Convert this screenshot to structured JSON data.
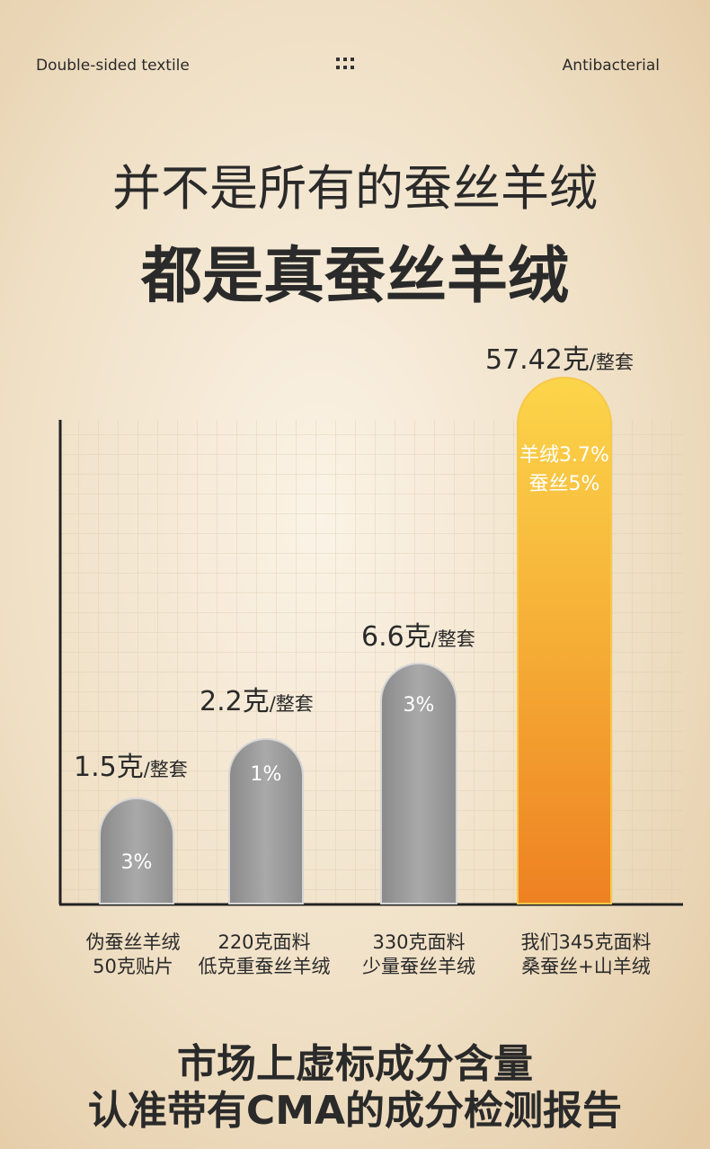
{
  "header": {
    "left": "Double-sided textile",
    "right": "Antibacterial"
  },
  "title": {
    "line1": "并不是所有的蚕丝羊绒",
    "line2": "都是真蚕丝羊绒"
  },
  "products": [
    {
      "amount": "1.5克",
      "unit": "/整套",
      "percent": [
        "3%"
      ],
      "label": [
        "伪蚕丝羊绒",
        "50克贴片"
      ]
    },
    {
      "amount": "2.2克",
      "unit": "/整套",
      "percent": [
        "1%"
      ],
      "label": [
        "220克面料",
        "低克重蚕丝羊绒"
      ]
    },
    {
      "amount": "6.6克",
      "unit": "/整套",
      "percent": [
        "3%"
      ],
      "label": [
        "330克面料",
        "少量蚕丝羊绒"
      ]
    },
    {
      "amount": "57.42克",
      "unit": "/整套",
      "percent": [
        "羊绒3.7%",
        "蚕丝5%"
      ],
      "label": [
        "我们345克面料",
        "桑蚕丝+山羊绒"
      ]
    }
  ],
  "footer": {
    "line1": "市场上虚标成分含量",
    "line2": "认准带有CMA的成分检测报告"
  }
}
